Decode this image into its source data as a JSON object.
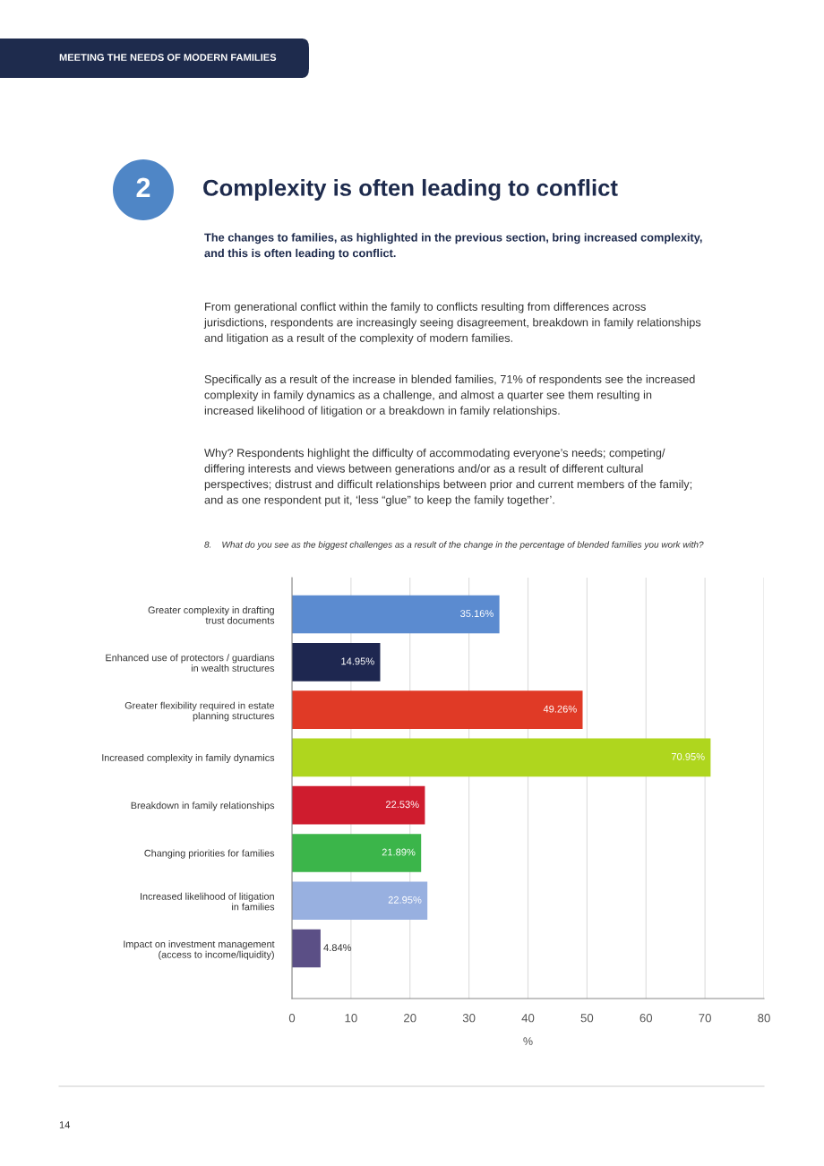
{
  "chart_data": {
    "type": "bar",
    "orientation": "horizontal",
    "title": "Complexity is often leading to conflict",
    "subtitle": "The changes to families, as highlighted in the previous section, bring increased complexity,\nand this is often leading to conflict.",
    "annotations": [
      "MEETING THE NEEDS OF MODERN FAMILIES",
      "2",
      "From generational conflict within the family to conflicts resulting from differences across\njurisdictions, respondents are increasingly seeing disagreement, breakdown in family relationships\nand litigation as a result of the complexity of modern families.",
      "Specifically as a result of the increase in blended families, 71% of respondents see the increased\ncomplexity in family dynamics as a challenge, and almost a quarter see them resulting in\nincreased likelihood of litigation or a breakdown in family relationships.",
      "Why? Respondents highlight the difficulty of accommodating everyone’s needs; competing/\ndiffering interests and views between generations and/or as a result of different cultural\nperspectives; distrust and difficult relationships between prior and current members of the family;\nand as one respondent put it, ‘less “glue” to keep the family together’.",
      "8.    What do you see as the biggest challenges as a result of the change in the percentage of blended families you work with?",
      "14"
    ],
    "categories": [
      "Greater complexity in drafting\ntrust documents",
      "Enhanced use of protectors / guardians\nin wealth structures",
      "Greater flexibility required in estate\nplanning structures",
      "Increased complexity in family dynamics",
      "Breakdown in family relationships",
      "Changing priorities for families",
      "Increased likelihood of litigation\nin families",
      "Impact on investment management\n(access to income/liquidity)"
    ],
    "values": [
      35.16,
      14.95,
      49.26,
      70.95,
      22.53,
      21.89,
      22.95,
      4.84
    ],
    "value_labels": [
      "35.16%",
      "14.95%",
      "49.26%",
      "70.95%",
      "22.53%",
      "21.89%",
      "22.95%",
      "4.84%"
    ],
    "colors": [
      "#5b8bd0",
      "#1e2750",
      "#e03a26",
      "#afd61e",
      "#cf1c2e",
      "#3bb54a",
      "#98b0e0",
      "#5b4f86"
    ],
    "xlabel": "%",
    "xlim": [
      0,
      80
    ],
    "xticks": [
      0,
      10,
      20,
      30,
      40,
      50,
      60,
      70,
      80
    ],
    "grid": "x"
  }
}
